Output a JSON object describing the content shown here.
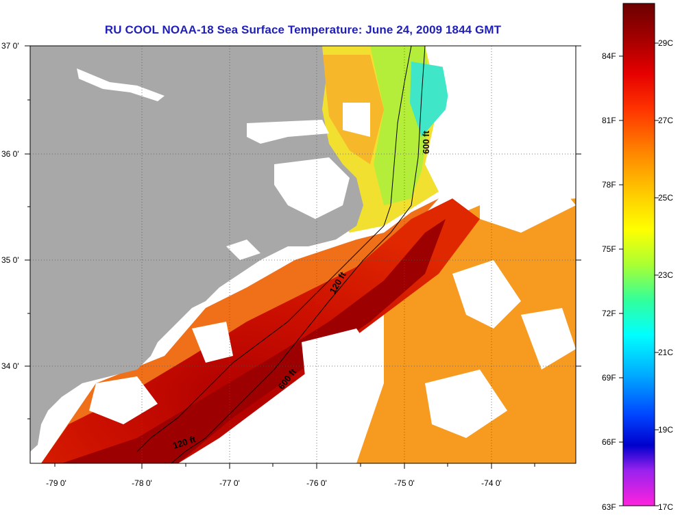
{
  "title": "RU COOL  NOAA-18  Sea Surface Temperature:  June 24, 2009 1844 GMT",
  "map": {
    "lat_labels": [
      "37 0'",
      "36 0'",
      "35 0'",
      "34 0'"
    ],
    "lon_labels": [
      "-79 0'",
      "-78 0'",
      "-77 0'",
      "-76 0'",
      "-75 0'",
      "-74 0'"
    ],
    "contours": [
      {
        "label": "600 ft",
        "id": "600-north"
      },
      {
        "label": "120 ft",
        "id": "120-mid"
      },
      {
        "label": "600 ft",
        "id": "600-mid"
      },
      {
        "label": "120 ft",
        "id": "120-south"
      }
    ],
    "land_color": "#a8a8a8",
    "cloud_color": "#ffffff"
  },
  "colorbar": {
    "fahrenheit_labels": [
      "84F",
      "81F",
      "78F",
      "75F",
      "72F",
      "69F",
      "66F",
      "63F"
    ],
    "celsius_labels": [
      "29C",
      "27C",
      "25C",
      "23C",
      "21C",
      "19C",
      "17C"
    ],
    "colors_top_to_bottom": [
      "#6b0000",
      "#a40000",
      "#e60000",
      "#ff3300",
      "#ff8800",
      "#ffcc00",
      "#ffff00",
      "#aaff33",
      "#33ff99",
      "#00ffff",
      "#00aaff",
      "#0044ff",
      "#0000cc",
      "#9922ee",
      "#ff22dd"
    ]
  }
}
